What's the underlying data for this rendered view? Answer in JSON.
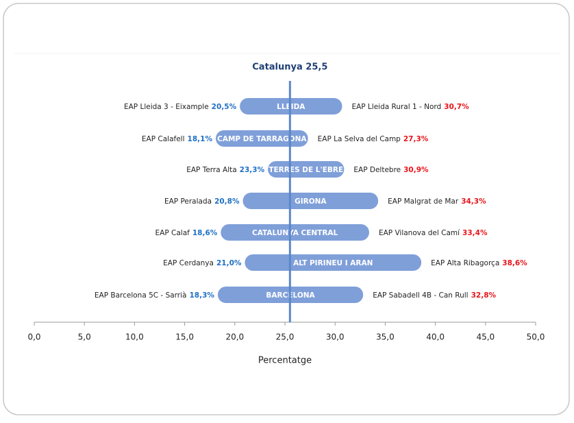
{
  "chart_data": {
    "type": "range_bar",
    "categories": [
      "LLEIDA",
      "CAMP DE TARRAGONA",
      "TERRES DE L'EBRE",
      "GIRONA",
      "CATALUNYA CENTRAL",
      "ALT PIRINEU I ARAN",
      "BARCELONA"
    ],
    "low": {
      "color": "#1f6fc5",
      "labels": [
        "EAP Lleida 3 - Eixample",
        "EAP Calafell",
        "EAP Terra Alta",
        "EAP Peralada",
        "EAP Calaf",
        "EAP Cerdanya",
        "EAP Barcelona 5C - Sarrià"
      ],
      "values": [
        20.5,
        18.1,
        23.3,
        20.8,
        18.6,
        21.0,
        18.3
      ],
      "value_labels": [
        "20,5%",
        "18,1%",
        "23,3%",
        "20,8%",
        "18,6%",
        "21,0%",
        "18,3%"
      ]
    },
    "high": {
      "color": "#e8141a",
      "labels": [
        "EAP Lleida Rural 1 - Nord",
        "EAP La Selva del Camp",
        "EAP Deltebre",
        "EAP Malgrat de Mar",
        "EAP Vilanova del Camí",
        "EAP Alta Ribagorça",
        "EAP Sabadell 4B - Can Rull"
      ],
      "values": [
        30.7,
        27.3,
        30.9,
        34.3,
        33.4,
        38.6,
        32.8
      ],
      "value_labels": [
        "30,7%",
        "27,3%",
        "30,9%",
        "34,3%",
        "33,4%",
        "38,6%",
        "32,8%"
      ]
    },
    "bar_color": "#7f9fd9",
    "reference": {
      "label": "Catalunya 25,5",
      "value": 25.5,
      "color": "#5b87c9"
    },
    "xlabel": "Percentatge",
    "xlim": [
      0,
      50
    ],
    "xticks": [
      {
        "value": 0,
        "label": "0,0"
      },
      {
        "value": 5,
        "label": "5,0"
      },
      {
        "value": 10,
        "label": "10,0"
      },
      {
        "value": 15,
        "label": "15,0"
      },
      {
        "value": 20,
        "label": "20,0"
      },
      {
        "value": 25,
        "label": "25,0"
      },
      {
        "value": 30,
        "label": "30,0"
      },
      {
        "value": 35,
        "label": "35,0"
      },
      {
        "value": 40,
        "label": "40,0"
      },
      {
        "value": 45,
        "label": "45,0"
      },
      {
        "value": 50,
        "label": "50,0"
      }
    ]
  }
}
